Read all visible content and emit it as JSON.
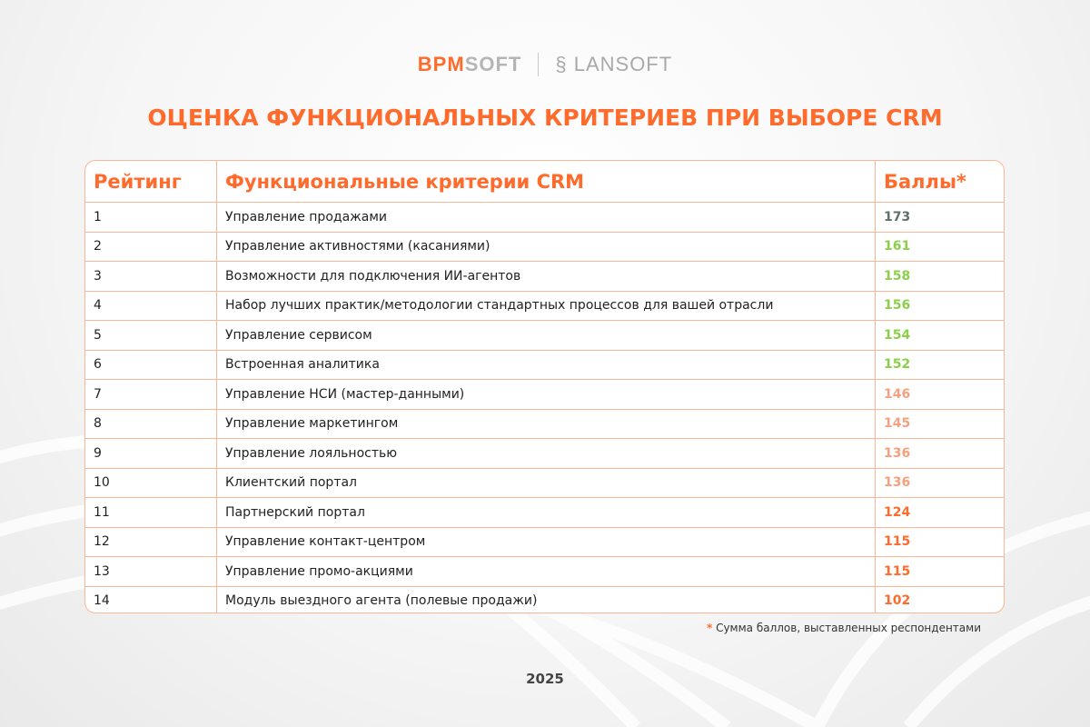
{
  "logos": {
    "brand1_a": "BPM",
    "brand1_b": "SOFT",
    "brand2": "LANSOFT"
  },
  "title": "ОЦЕНКА ФУНКЦИОНАЛЬНЫХ КРИТЕРИЕВ ПРИ ВЫБОРЕ CRM",
  "table": {
    "headers": [
      "Рейтинг",
      "Функциональные критерии CRM",
      "Баллы*"
    ],
    "rows": [
      {
        "rank": "1",
        "criterion": "Управление продажами",
        "score": "173",
        "color": "#5f6f6a"
      },
      {
        "rank": "2",
        "criterion": "Управление активностями (касаниями)",
        "score": "161",
        "color": "#8ccf4a"
      },
      {
        "rank": "3",
        "criterion": "Возможности для подключения ИИ-агентов",
        "score": "158",
        "color": "#8ccf4a"
      },
      {
        "rank": "4",
        "criterion": "Набор лучших практик/методологии стандартных процессов для вашей отрасли",
        "score": "156",
        "color": "#8ccf4a"
      },
      {
        "rank": "5",
        "criterion": "Управление сервисом",
        "score": "154",
        "color": "#8ccf4a"
      },
      {
        "rank": "6",
        "criterion": "Встроенная аналитика",
        "score": "152",
        "color": "#8ccf4a"
      },
      {
        "rank": "7",
        "criterion": "Управление НСИ (мастер-данными)",
        "score": "146",
        "color": "#f5a07e"
      },
      {
        "rank": "8",
        "criterion": "Управление маркетингом",
        "score": "145",
        "color": "#f5a07e"
      },
      {
        "rank": "9",
        "criterion": "Управление лояльностью",
        "score": "136",
        "color": "#f5a07e"
      },
      {
        "rank": "10",
        "criterion": "Клиентский портал",
        "score": "136",
        "color": "#f5a07e"
      },
      {
        "rank": "11",
        "criterion": "Партнерский портал",
        "score": "124",
        "color": "#ff6b2c"
      },
      {
        "rank": "12",
        "criterion": "Управление контакт-центром",
        "score": "115",
        "color": "#ff6b2c"
      },
      {
        "rank": "13",
        "criterion": "Управление промо-акциями",
        "score": "115",
        "color": "#ff6b2c"
      },
      {
        "rank": "14",
        "criterion": "Модуль выездного агента (полевые продажи)",
        "score": "102",
        "color": "#ff6b2c"
      }
    ]
  },
  "footnote": {
    "star": "*",
    "text": "Сумма баллов, выставленных респондентами"
  },
  "year": "2025"
}
